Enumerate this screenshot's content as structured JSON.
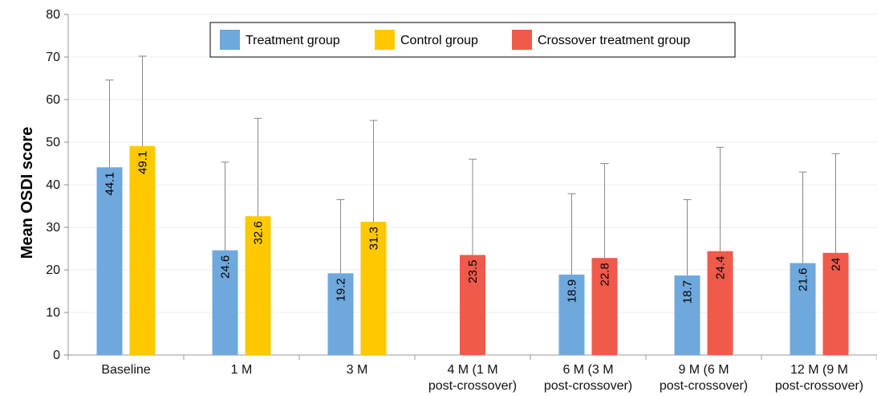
{
  "chart_data": {
    "type": "bar",
    "title": "",
    "xlabel": "",
    "ylabel": "Mean OSDI score",
    "ylim": [
      0,
      80
    ],
    "yticks": [
      0,
      10,
      20,
      30,
      40,
      50,
      60,
      70,
      80
    ],
    "grid": true,
    "legend_position": "top-center",
    "categories": [
      [
        "Baseline"
      ],
      [
        "1 M"
      ],
      [
        "3 M"
      ],
      [
        "4 M (1 M",
        "post-crossover)"
      ],
      [
        "6 M (3 M",
        "post-crossover)"
      ],
      [
        "9 M (6 M",
        "post-crossover)"
      ],
      [
        "12 M (9 M",
        "post-crossover)"
      ]
    ],
    "series": [
      {
        "name": "Treatment group",
        "color": "#6fa8dc",
        "values": [
          44.1,
          24.6,
          19.2,
          null,
          18.9,
          18.7,
          21.6
        ],
        "labels": [
          "44.1",
          "24.6",
          "19.2",
          null,
          "18.9",
          "18.7",
          "21.6"
        ],
        "error_upper": [
          64.6,
          45.3,
          36.5,
          null,
          37.9,
          36.5,
          43.0
        ]
      },
      {
        "name": "Control group",
        "color": "#ffc800",
        "values": [
          49.1,
          32.6,
          31.3,
          null,
          null,
          null,
          null
        ],
        "labels": [
          "49.1",
          "32.6",
          "31.3",
          null,
          null,
          null,
          null
        ],
        "error_upper": [
          70.2,
          55.6,
          55.1,
          null,
          null,
          null,
          null
        ]
      },
      {
        "name": "Crossover treatment group",
        "color": "#f05a4b",
        "values": [
          null,
          null,
          null,
          23.5,
          22.8,
          24.4,
          24
        ],
        "labels": [
          null,
          null,
          null,
          "23.5",
          "22.8",
          "24.4",
          "24"
        ],
        "error_upper": [
          null,
          null,
          null,
          46.0,
          45.0,
          48.8,
          47.3
        ]
      }
    ]
  }
}
